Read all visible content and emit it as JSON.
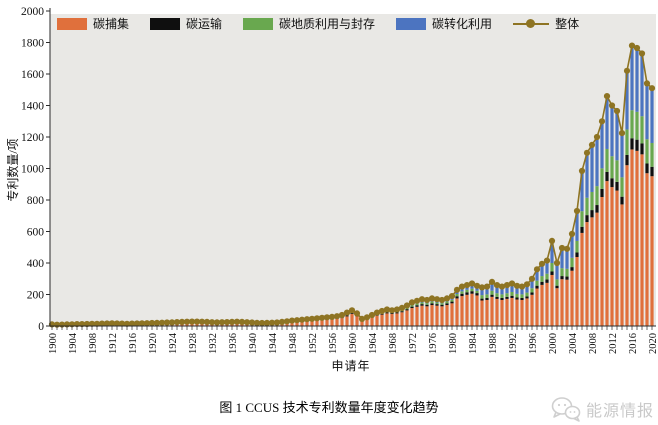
{
  "figure": {
    "caption": "图 1  CCUS 技术专利数量年度变化趋势",
    "x_axis_title": "申请年",
    "y_axis_title": "专利数量/项"
  },
  "watermark": {
    "icon": "wechat-chat-bubbles-icon",
    "text": "能源情报"
  },
  "colors": {
    "plot_background": "#e9e8e5",
    "axis": "#2a2a2a",
    "tick_text": "#111111",
    "watermark_gray": "#c9c9c9"
  },
  "chart_data": {
    "type": "bar",
    "stacked": true,
    "title": "",
    "xlabel": "申请年",
    "ylabel": "专利数量/项",
    "ylim": [
      0,
      2000
    ],
    "ytick_step": 200,
    "yticks": [
      0,
      200,
      400,
      600,
      800,
      1000,
      1200,
      1400,
      1600,
      1800,
      2000
    ],
    "xtick_label_every": 4,
    "legend_position": "top-inside",
    "grid": false,
    "years": [
      1900,
      1901,
      1902,
      1903,
      1904,
      1905,
      1906,
      1907,
      1908,
      1909,
      1910,
      1911,
      1912,
      1913,
      1914,
      1915,
      1916,
      1917,
      1918,
      1919,
      1920,
      1921,
      1922,
      1923,
      1924,
      1925,
      1926,
      1927,
      1928,
      1929,
      1930,
      1931,
      1932,
      1933,
      1934,
      1935,
      1936,
      1937,
      1938,
      1939,
      1940,
      1941,
      1942,
      1943,
      1944,
      1945,
      1946,
      1947,
      1948,
      1949,
      1950,
      1951,
      1952,
      1953,
      1954,
      1955,
      1956,
      1957,
      1958,
      1959,
      1960,
      1961,
      1962,
      1963,
      1964,
      1965,
      1966,
      1967,
      1968,
      1969,
      1970,
      1971,
      1972,
      1973,
      1974,
      1975,
      1976,
      1977,
      1978,
      1979,
      1980,
      1981,
      1982,
      1983,
      1984,
      1985,
      1986,
      1987,
      1988,
      1989,
      1990,
      1991,
      1992,
      1993,
      1994,
      1995,
      1996,
      1997,
      1998,
      1999,
      2000,
      2001,
      2002,
      2003,
      2004,
      2005,
      2006,
      2007,
      2008,
      2009,
      2010,
      2011,
      2012,
      2013,
      2014,
      2015,
      2016,
      2017,
      2018,
      2019,
      2020
    ],
    "series": [
      {
        "name": "碳捕集",
        "color": "#e0703c",
        "values": [
          7,
          6,
          6,
          7,
          8,
          9,
          9,
          9,
          10,
          10,
          11,
          12,
          12,
          12,
          11,
          10,
          11,
          12,
          12,
          13,
          14,
          14,
          15,
          16,
          17,
          18,
          19,
          19,
          20,
          20,
          19,
          19,
          17,
          17,
          17,
          18,
          19,
          19,
          19,
          17,
          16,
          14,
          14,
          14,
          15,
          16,
          19,
          22,
          24,
          27,
          29,
          31,
          33,
          35,
          37,
          40,
          42,
          45,
          50,
          61,
          76,
          61,
          34,
          42,
          53,
          65,
          72,
          80,
          76,
          80,
          87,
          99,
          114,
          122,
          129,
          125,
          133,
          129,
          125,
          133,
          144,
          175,
          190,
          198,
          205,
          194,
          162,
          165,
          185,
          172,
          165,
          172,
          178,
          168,
          165,
          175,
          198,
          238,
          261,
          274,
          324,
          240,
          297,
          294,
          351,
          438,
          591,
          660,
          690,
          720,
          819,
          920,
          882,
          860,
          772,
          1021,
          1121,
          1112,
          1090,
          970,
          951
        ]
      },
      {
        "name": "碳运输",
        "color": "#0f0f0f",
        "values": [
          1,
          1,
          1,
          1,
          1,
          1,
          1,
          1,
          1,
          1,
          1,
          2,
          2,
          2,
          1,
          1,
          1,
          2,
          2,
          2,
          2,
          2,
          2,
          2,
          2,
          2,
          3,
          3,
          3,
          3,
          3,
          3,
          2,
          2,
          2,
          2,
          3,
          3,
          3,
          2,
          2,
          2,
          2,
          2,
          2,
          2,
          3,
          3,
          3,
          4,
          4,
          4,
          5,
          5,
          5,
          5,
          6,
          6,
          7,
          8,
          6,
          5,
          3,
          3,
          4,
          5,
          6,
          6,
          6,
          6,
          7,
          8,
          9,
          10,
          10,
          10,
          11,
          10,
          10,
          11,
          11,
          14,
          15,
          16,
          16,
          15,
          12,
          13,
          14,
          13,
          13,
          13,
          14,
          13,
          13,
          13,
          15,
          18,
          20,
          21,
          22,
          16,
          20,
          20,
          23,
          29,
          39,
          44,
          46,
          48,
          52,
          58,
          56,
          55,
          49,
          65,
          71,
          71,
          69,
          62,
          60
        ]
      },
      {
        "name": "碳地质利用与封存",
        "color": "#69a84f",
        "values": [
          1,
          1,
          1,
          1,
          1,
          1,
          1,
          1,
          1,
          1,
          1,
          1,
          1,
          1,
          1,
          1,
          1,
          1,
          1,
          1,
          1,
          2,
          2,
          2,
          2,
          2,
          2,
          2,
          2,
          2,
          2,
          2,
          2,
          2,
          2,
          2,
          2,
          2,
          2,
          2,
          2,
          2,
          1,
          2,
          2,
          2,
          2,
          2,
          3,
          3,
          3,
          3,
          4,
          4,
          4,
          4,
          5,
          5,
          6,
          7,
          6,
          5,
          3,
          3,
          4,
          5,
          6,
          6,
          6,
          6,
          7,
          8,
          9,
          10,
          10,
          10,
          11,
          10,
          10,
          11,
          11,
          14,
          15,
          16,
          16,
          15,
          22,
          23,
          25,
          23,
          23,
          23,
          24,
          23,
          23,
          24,
          27,
          32,
          36,
          37,
          54,
          40,
          50,
          49,
          59,
          73,
          99,
          110,
          115,
          120,
          130,
          146,
          140,
          137,
          123,
          162,
          178,
          177,
          173,
          154,
          151
        ]
      },
      {
        "name": "碳转化利用",
        "color": "#4c74c0",
        "values": [
          1,
          0,
          1,
          1,
          1,
          1,
          1,
          2,
          2,
          2,
          2,
          1,
          2,
          1,
          2,
          2,
          2,
          1,
          2,
          2,
          2,
          2,
          2,
          2,
          2,
          3,
          2,
          3,
          3,
          3,
          3,
          2,
          3,
          2,
          3,
          3,
          2,
          3,
          2,
          3,
          2,
          2,
          2,
          2,
          2,
          2,
          2,
          3,
          4,
          3,
          4,
          5,
          4,
          5,
          6,
          6,
          5,
          6,
          7,
          9,
          12,
          9,
          5,
          7,
          9,
          10,
          11,
          13,
          12,
          13,
          14,
          15,
          18,
          18,
          21,
          20,
          20,
          21,
          20,
          20,
          24,
          27,
          30,
          30,
          33,
          31,
          49,
          49,
          56,
          52,
          49,
          52,
          54,
          51,
          49,
          53,
          60,
          72,
          78,
          83,
          140,
          104,
          128,
          127,
          152,
          190,
          256,
          286,
          299,
          312,
          299,
          336,
          322,
          313,
          281,
          372,
          410,
          405,
          398,
          354,
          348
        ]
      }
    ],
    "line_series": {
      "name": "整体",
      "color": "#8e7423",
      "marker": "circle",
      "values": [
        10,
        8,
        9,
        10,
        11,
        12,
        12,
        13,
        14,
        14,
        15,
        16,
        17,
        16,
        15,
        14,
        15,
        16,
        17,
        18,
        19,
        20,
        21,
        22,
        23,
        25,
        26,
        27,
        28,
        28,
        27,
        26,
        24,
        23,
        24,
        25,
        26,
        27,
        26,
        24,
        22,
        20,
        19,
        20,
        21,
        22,
        26,
        30,
        34,
        37,
        40,
        43,
        46,
        49,
        52,
        55,
        58,
        62,
        70,
        85,
        100,
        80,
        45,
        55,
        70,
        85,
        95,
        105,
        100,
        105,
        115,
        130,
        150,
        160,
        170,
        165,
        175,
        170,
        165,
        175,
        190,
        230,
        250,
        260,
        270,
        255,
        245,
        250,
        280,
        260,
        250,
        260,
        270,
        255,
        250,
        265,
        300,
        360,
        395,
        415,
        540,
        400,
        495,
        490,
        585,
        730,
        985,
        1100,
        1150,
        1200,
        1300,
        1460,
        1400,
        1365,
        1225,
        1620,
        1780,
        1765,
        1730,
        1540,
        1510
      ]
    }
  }
}
